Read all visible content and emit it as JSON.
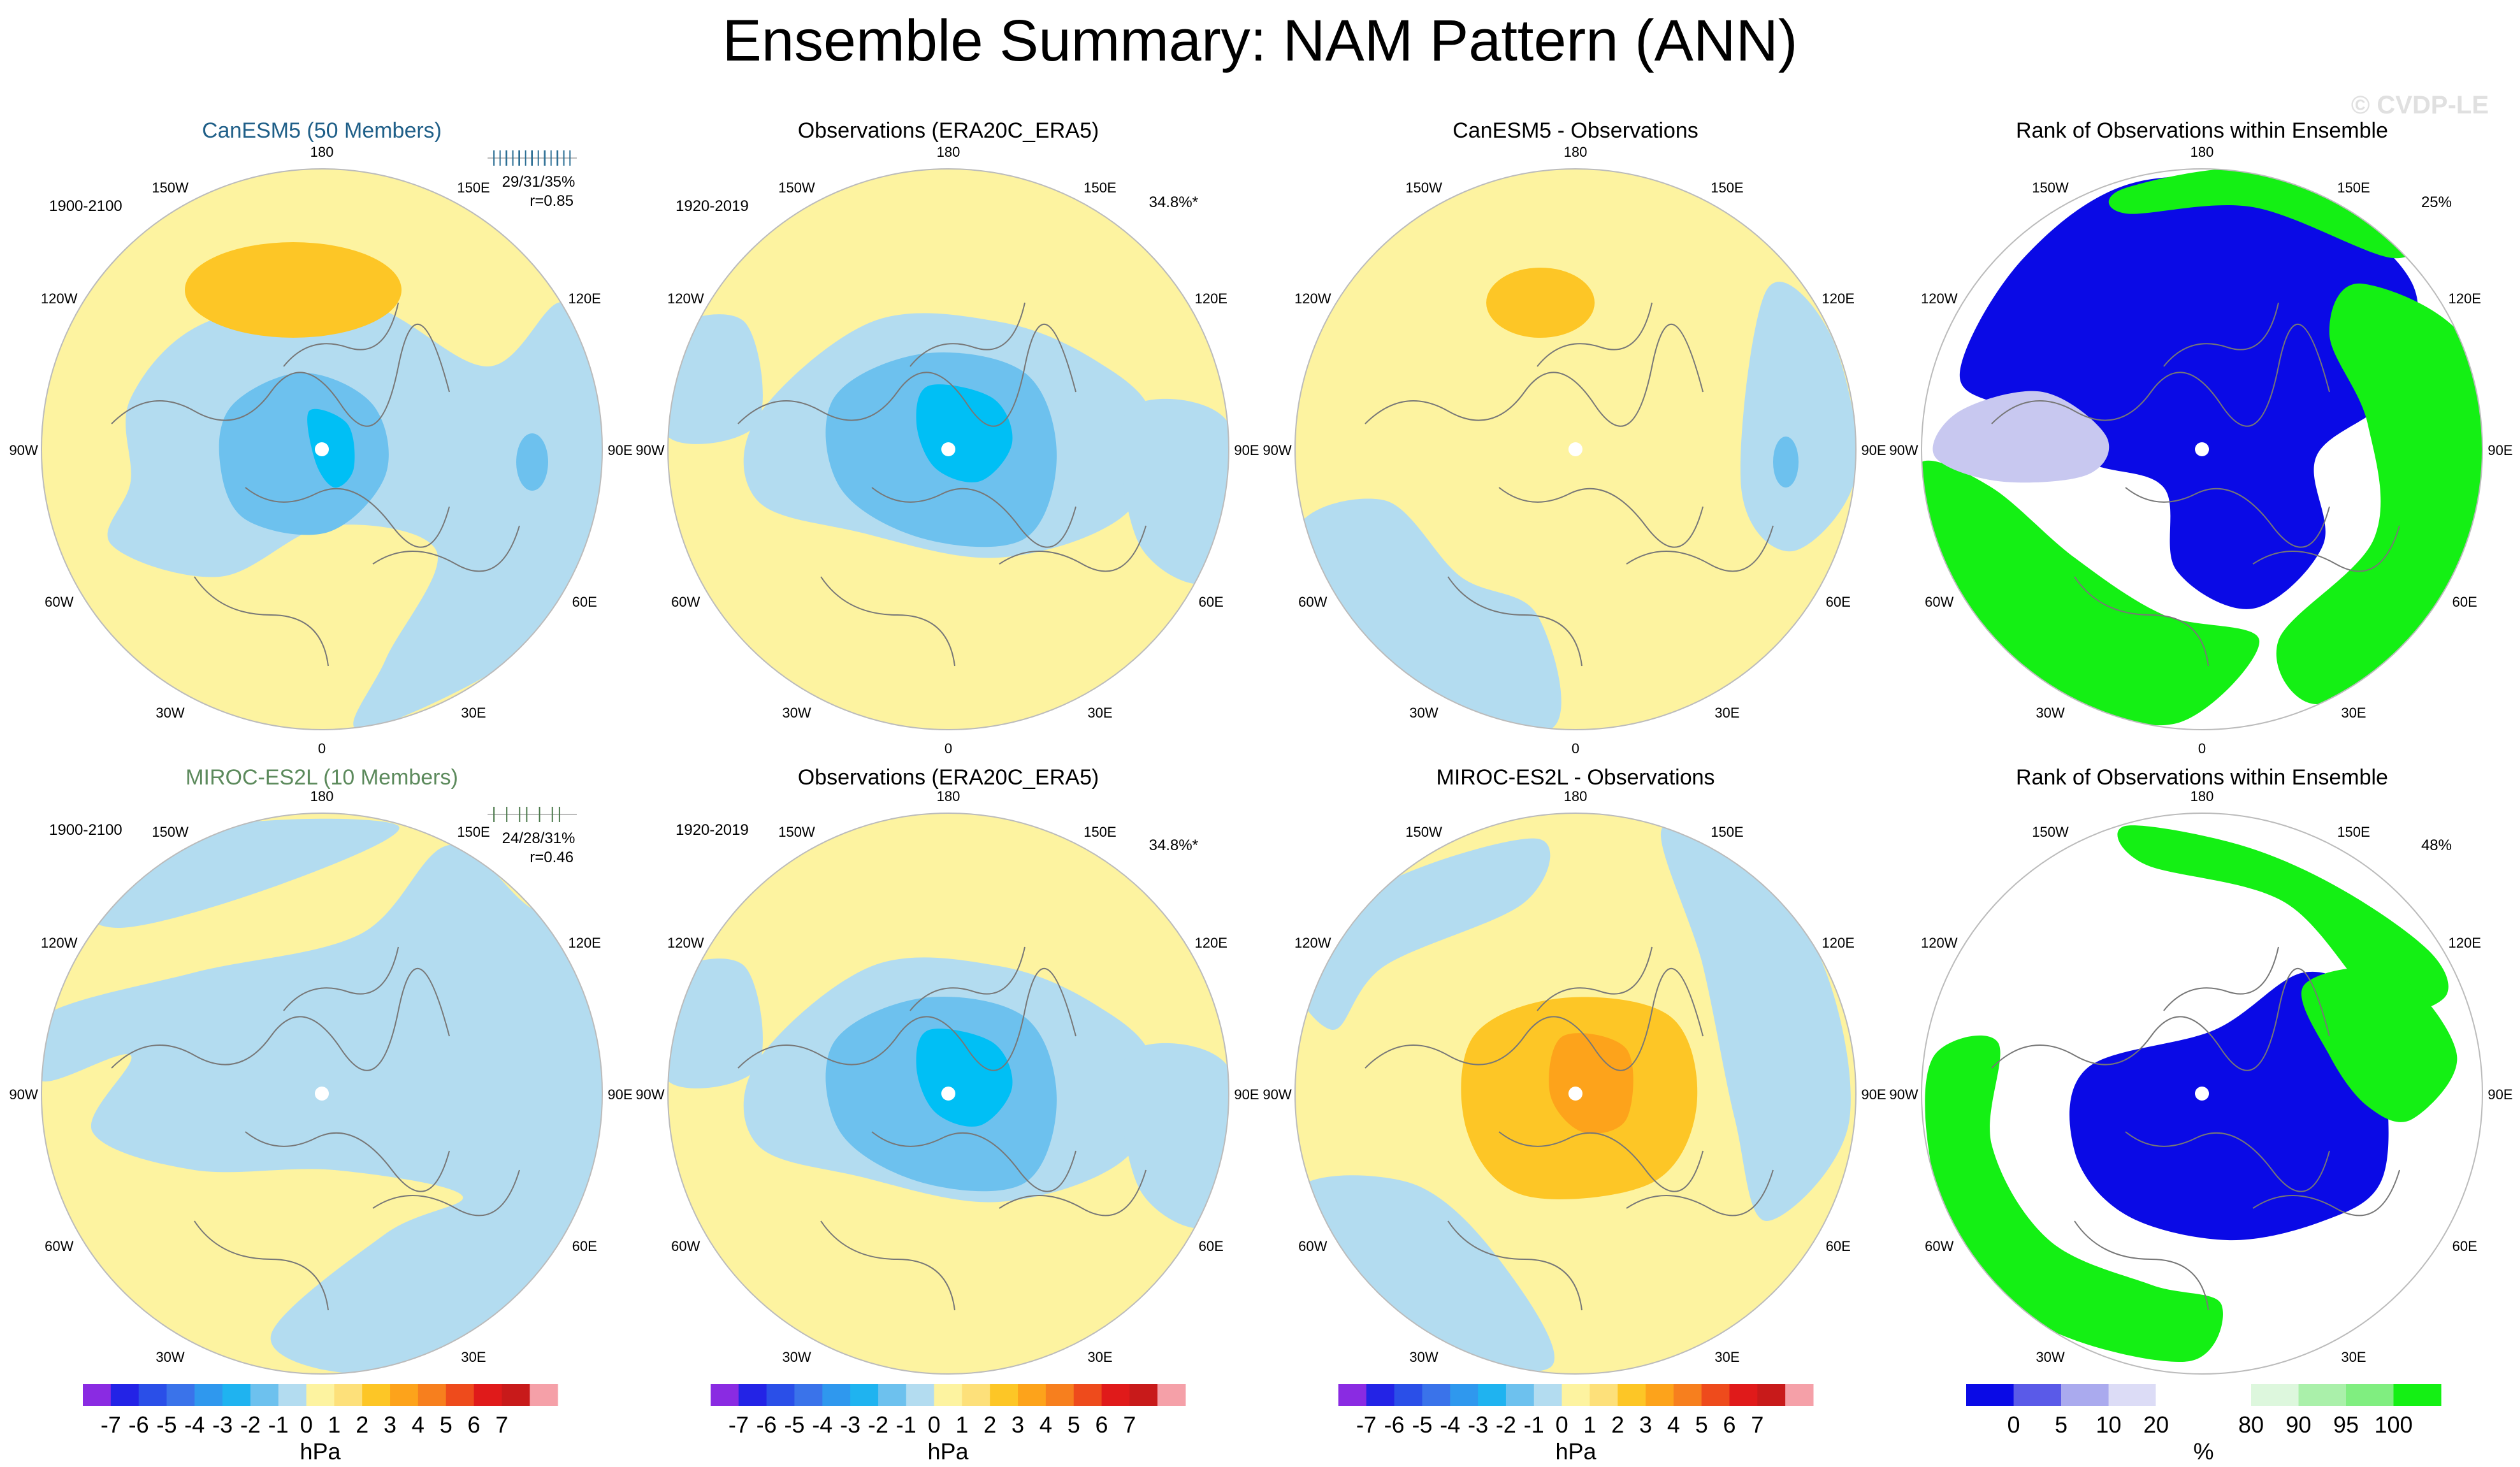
{
  "title": "Ensemble Summary: NAM Pattern (ANN)",
  "watermark": "© CVDP-LE",
  "colors": {
    "blue_light": "#b3dcf0",
    "blue_mid": "#6dc1ee",
    "blue_strong": "#1fb3f0",
    "blue_deep": "#00bff5",
    "yellow_light": "#fdf3a0",
    "yellow_mid": "#fde07a",
    "orange_mid": "#fdc626",
    "orange_deep": "#fda31b",
    "rank_blue": "#0a0ae6",
    "rank_green": "#14f014",
    "coast": "#777777",
    "outline": "#bbbbbb"
  },
  "lon_labels": [
    "180",
    "150E",
    "120E",
    "90E",
    "60E",
    "30E",
    "0",
    "30W",
    "60W",
    "90W",
    "120W",
    "150W"
  ],
  "panels": [
    {
      "title": "CanESM5 (50 Members)",
      "title_color": "#1f5f88",
      "period": "1900-2100",
      "right_label": "",
      "stats": "29/31/35%",
      "corr": "r=0.85",
      "pattern": "canesm"
    },
    {
      "title": "Observations (ERA20C_ERA5)",
      "title_color": "#000000",
      "period": "1920-2019",
      "right_label": "34.8%*",
      "stats": "",
      "corr": "",
      "pattern": "obs"
    },
    {
      "title": "CanESM5 - Observations",
      "title_color": "#000000",
      "period": "",
      "right_label": "",
      "stats": "",
      "corr": "",
      "pattern": "diff1"
    },
    {
      "title": "Rank of Observations within Ensemble",
      "title_color": "#000000",
      "period": "",
      "right_label": "25%",
      "stats": "",
      "corr": "",
      "pattern": "rank1"
    },
    {
      "title": "MIROC-ES2L (10 Members)",
      "title_color": "#5c8a5c",
      "period": "1900-2100",
      "right_label": "",
      "stats": "24/28/31%",
      "corr": "r=0.46",
      "pattern": "miroc"
    },
    {
      "title": "Observations (ERA20C_ERA5)",
      "title_color": "#000000",
      "period": "1920-2019",
      "right_label": "34.8%*",
      "stats": "",
      "corr": "",
      "pattern": "obs"
    },
    {
      "title": "MIROC-ES2L - Observations",
      "title_color": "#000000",
      "period": "",
      "right_label": "",
      "stats": "",
      "corr": "",
      "pattern": "diff2"
    },
    {
      "title": "Rank of Observations within Ensemble",
      "title_color": "#000000",
      "period": "",
      "right_label": "48%",
      "stats": "",
      "corr": "",
      "pattern": "rank2"
    }
  ],
  "colorbar_hpa": {
    "colors": [
      "#8a2be2",
      "#2323e6",
      "#2a4fe8",
      "#3a73ea",
      "#2f98ee",
      "#1fb3f0",
      "#6dc1ee",
      "#b3dcf0",
      "#fdf3a0",
      "#fde07a",
      "#fdc626",
      "#fda31b",
      "#f77f1e",
      "#ee4b1c",
      "#e01a1a",
      "#c81a1a",
      "#f5a0a8"
    ],
    "labels": [
      "-7",
      "-6",
      "-5",
      "-4",
      "-3",
      "-2",
      "-1",
      "0",
      "1",
      "2",
      "3",
      "4",
      "5",
      "6",
      "7"
    ],
    "unit": "hPa"
  },
  "colorbar_rank": {
    "colors": [
      "#0a0ae6",
      "#5a5ae8",
      "#aaaaee",
      "#dcdcf6",
      "#ffffff",
      "#ffffff",
      "#ddf7dd",
      "#aaf0aa",
      "#80ee80",
      "#14f014"
    ],
    "labels": [
      "0",
      "5",
      "10",
      "20",
      "80",
      "90",
      "95",
      "100"
    ],
    "unit": "%"
  },
  "chart_data": [
    {
      "type": "heatmap",
      "title": "CanESM5 (50 Members)",
      "period": "1900-2100",
      "projection": "north-polar stereographic",
      "units": "hPa",
      "stats": "29/31/35%",
      "pattern_correlation": 0.85,
      "features": [
        {
          "region": "Arctic center",
          "value": -3
        },
        {
          "region": "North Pacific",
          "value": 2
        },
        {
          "region": "Atlantic/Europe",
          "value": 1
        }
      ]
    },
    {
      "type": "heatmap",
      "title": "Observations (ERA20C_ERA5)",
      "period": "1920-2019",
      "projection": "north-polar stereographic",
      "units": "hPa",
      "pct_variance": "34.8%*",
      "features": [
        {
          "region": "Arctic center",
          "value": -3
        },
        {
          "region": "mid-latitudes",
          "value": 1
        }
      ]
    },
    {
      "type": "heatmap",
      "title": "CanESM5 - Observations",
      "projection": "north-polar stereographic",
      "units": "hPa",
      "features": [
        {
          "region": "North Pacific",
          "value": 2
        },
        {
          "region": "Arctic",
          "value": 1
        }
      ]
    },
    {
      "type": "heatmap",
      "title": "Rank of Observations within Ensemble",
      "projection": "north-polar stereographic",
      "units": "%",
      "summary": "25%",
      "features": [
        {
          "region": "Arctic/Eurasia",
          "value": 0
        },
        {
          "region": "North Atlantic",
          "value": 100
        }
      ]
    },
    {
      "type": "heatmap",
      "title": "MIROC-ES2L (10 Members)",
      "period": "1900-2100",
      "projection": "north-polar stereographic",
      "units": "hPa",
      "stats": "24/28/31%",
      "pattern_correlation": 0.46,
      "features": [
        {
          "region": "Arctic center",
          "value": -1
        },
        {
          "region": "mid-latitudes",
          "value": 1
        }
      ]
    },
    {
      "type": "heatmap",
      "title": "Observations (ERA20C_ERA5)",
      "period": "1920-2019",
      "projection": "north-polar stereographic",
      "units": "hPa",
      "pct_variance": "34.8%*",
      "features": [
        {
          "region": "Arctic center",
          "value": -3
        }
      ]
    },
    {
      "type": "heatmap",
      "title": "MIROC-ES2L - Observations",
      "projection": "north-polar stereographic",
      "units": "hPa",
      "features": [
        {
          "region": "Arctic center",
          "value": 3
        },
        {
          "region": "mid-latitudes",
          "value": 1
        }
      ]
    },
    {
      "type": "heatmap",
      "title": "Rank of Observations within Ensemble",
      "projection": "north-polar stereographic",
      "units": "%",
      "summary": "48%",
      "features": [
        {
          "region": "Arctic",
          "value": 0
        },
        {
          "region": "North Atlantic",
          "value": 100
        }
      ]
    }
  ]
}
